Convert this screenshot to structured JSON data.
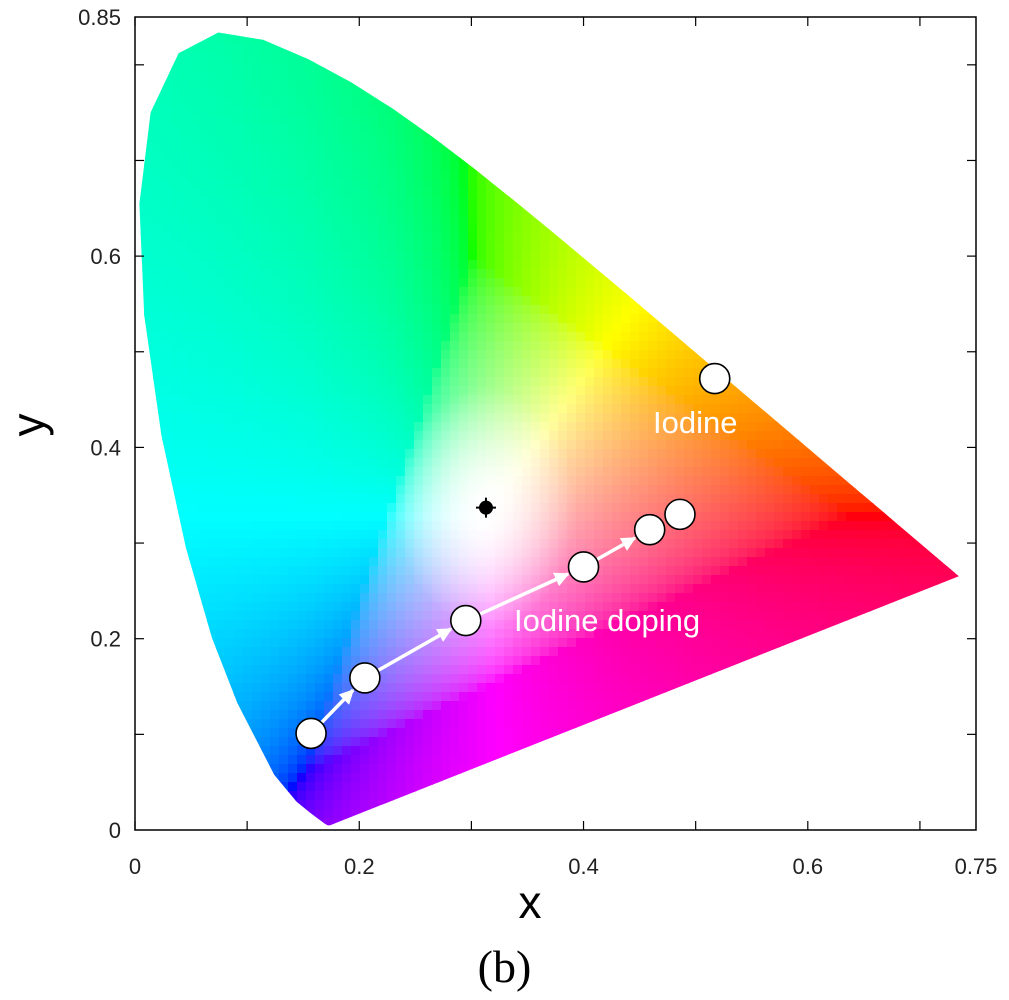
{
  "chart_data": {
    "type": "scatter",
    "title": "",
    "xlabel": "x",
    "ylabel": "y",
    "xlim": [
      0,
      0.75
    ],
    "ylim": [
      0,
      0.85
    ],
    "x_ticks": [
      "0",
      "0.2",
      "0.4",
      "0.6",
      "0.75"
    ],
    "x_tick_values": [
      0,
      0.2,
      0.4,
      0.6,
      0.75
    ],
    "y_ticks": [
      "0",
      "0.2",
      "0.4",
      "0.6",
      "0.85"
    ],
    "y_tick_values": [
      0,
      0.2,
      0.4,
      0.6,
      0.85
    ],
    "grid": false,
    "background": "CIE 1931 chromaticity diagram",
    "white_point": {
      "x": 0.313,
      "y": 0.337
    },
    "series": [
      {
        "name": "Iodine doping",
        "points": [
          {
            "x": 0.157,
            "y": 0.101
          },
          {
            "x": 0.205,
            "y": 0.159
          },
          {
            "x": 0.295,
            "y": 0.219
          },
          {
            "x": 0.4,
            "y": 0.275
          },
          {
            "x": 0.459,
            "y": 0.314
          },
          {
            "x": 0.486,
            "y": 0.33
          }
        ]
      },
      {
        "name": "Iodine",
        "points": [
          {
            "x": 0.517,
            "y": 0.472
          }
        ]
      }
    ],
    "annotations": [
      {
        "text": "Iodine",
        "x": 0.462,
        "y": 0.415
      },
      {
        "text": "Iodine doping",
        "x": 0.338,
        "y": 0.208
      }
    ],
    "arrows": [
      {
        "from": 0,
        "to": 1
      },
      {
        "from": 1,
        "to": 2
      },
      {
        "from": 2,
        "to": 3
      },
      {
        "from": 3,
        "to": 4
      }
    ]
  },
  "caption": "(b)",
  "colors": {
    "marker_fill": "#ffffff",
    "marker_stroke": "#000000",
    "arrow": "#ffffff",
    "white_point": "#000000"
  }
}
